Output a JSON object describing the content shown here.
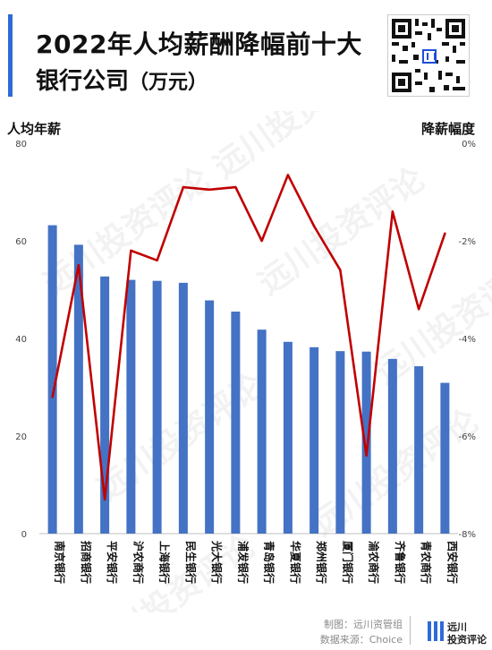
{
  "header": {
    "title_line1": "2022年人均薪酬降幅前十大",
    "title_line2": "银行公司",
    "title_unit": "（万元）"
  },
  "logo": {
    "line1": "远川",
    "line2": "投资评论"
  },
  "colors": {
    "bar": "#4472c4",
    "line": "#c00000",
    "accent": "#2f6bd6"
  },
  "footer": {
    "credit1": "制图：远川资管组",
    "credit2": "数据来源：Choice"
  },
  "chart_data": {
    "type": "bar+line",
    "categories": [
      "南京银行",
      "招商银行",
      "平安银行",
      "沪农商行",
      "上海银行",
      "民生银行",
      "光大银行",
      "浦发银行",
      "青岛银行",
      "华夏银行",
      "郑州银行",
      "厦门银行",
      "渝农商行",
      "齐鲁银行",
      "青农商行",
      "西安银行"
    ],
    "series": [
      {
        "name": "人均年薪",
        "type": "bar",
        "axis": "left",
        "values": [
          63.2,
          59.2,
          52.7,
          52.0,
          51.8,
          51.4,
          47.8,
          45.5,
          41.8,
          39.3,
          38.2,
          37.4,
          37.3,
          35.8,
          34.3,
          30.9
        ]
      },
      {
        "name": "降薪幅度",
        "type": "line",
        "axis": "right",
        "values": [
          -5.2,
          -2.5,
          -7.3,
          -2.2,
          -2.4,
          -0.9,
          -0.95,
          -0.9,
          -2.0,
          -0.65,
          -1.7,
          -2.6,
          -6.4,
          -1.4,
          -3.4,
          -1.85
        ]
      }
    ],
    "left_axis": {
      "title": "人均年薪",
      "min": 0,
      "max": 80,
      "ticks": [
        "0",
        "20",
        "40",
        "60",
        "80"
      ]
    },
    "right_axis": {
      "title": "降薪幅度",
      "min": -8,
      "max": 0,
      "ticks": [
        "0%",
        "-2%",
        "-4%",
        "-6%",
        "-8%"
      ]
    },
    "grid": false,
    "legend": "none"
  }
}
